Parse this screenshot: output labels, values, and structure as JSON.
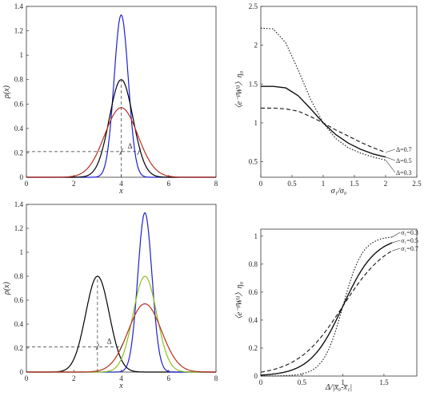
{
  "chart_data": [
    {
      "type": "line",
      "panel": "top-left",
      "xlabel": "x",
      "ylabel": "ρ(x)",
      "xlim": [
        0,
        8
      ],
      "ylim": [
        0,
        1.4
      ],
      "xticks": [
        "0",
        "2",
        "4",
        "6",
        "8"
      ],
      "yticks": [
        "0",
        "0.2",
        "0.4",
        "0.6",
        "0.8",
        "1",
        "1.2",
        "1.4"
      ],
      "series": [
        {
          "color": "#1f1fd1",
          "shape": "gaussian",
          "mean": 4.0,
          "peak": 1.33
        },
        {
          "color": "#000000",
          "shape": "gaussian",
          "mean": 4.0,
          "peak": 0.8
        },
        {
          "color": "#b5301f",
          "shape": "gaussian",
          "mean": 4.0,
          "peak": 0.57
        }
      ],
      "annotation": {
        "text": "Δ",
        "y_level": 0.21,
        "x_marker": 4.0,
        "x_span": [
          4.0,
          4.75
        ]
      }
    },
    {
      "type": "line",
      "panel": "top-right",
      "xlabel": "σ₁/σ₀",
      "ylabel": "〈e⁻ᵝWᵈ〉η₀",
      "xlim": [
        0,
        2.5
      ],
      "ylim": [
        0.3,
        2.5
      ],
      "xticks": [
        "0",
        "0.5",
        "1",
        "1.5",
        "2",
        "2.5"
      ],
      "yticks": [
        "0.5",
        "1",
        "1.5",
        "2",
        "2.5"
      ],
      "series": [
        {
          "name": "Δ=0.7",
          "style": "dashed",
          "x": [
            0,
            0.2,
            0.4,
            0.6,
            0.8,
            1.0,
            1.2,
            1.4,
            1.6,
            1.8,
            2.0
          ],
          "y": [
            1.19,
            1.19,
            1.18,
            1.15,
            1.08,
            1.0,
            0.91,
            0.83,
            0.75,
            0.68,
            0.62
          ]
        },
        {
          "name": "Δ=0.5",
          "style": "solid",
          "x": [
            0,
            0.2,
            0.4,
            0.6,
            0.8,
            1.0,
            1.2,
            1.4,
            1.6,
            1.8,
            2.0
          ],
          "y": [
            1.47,
            1.47,
            1.45,
            1.35,
            1.18,
            1.0,
            0.85,
            0.74,
            0.66,
            0.6,
            0.56
          ]
        },
        {
          "name": "Δ=0.3",
          "style": "dotted",
          "x": [
            0,
            0.2,
            0.4,
            0.6,
            0.8,
            1.0,
            1.2,
            1.4,
            1.6,
            1.8,
            2.0
          ],
          "y": [
            2.22,
            2.21,
            2.03,
            1.68,
            1.3,
            1.0,
            0.8,
            0.68,
            0.61,
            0.56,
            0.52
          ]
        }
      ]
    },
    {
      "type": "line",
      "panel": "bottom-left",
      "xlabel": "x",
      "ylabel": "ρ(x)",
      "xlim": [
        0,
        8
      ],
      "ylim": [
        0,
        1.4
      ],
      "xticks": [
        "0",
        "2",
        "4",
        "6",
        "8"
      ],
      "yticks": [
        "0",
        "0.2",
        "0.4",
        "0.6",
        "0.8",
        "1",
        "1.2",
        "1.4"
      ],
      "series": [
        {
          "color": "#000000",
          "shape": "gaussian",
          "mean": 3.0,
          "peak": 0.8
        },
        {
          "color": "#1f1fd1",
          "shape": "gaussian",
          "mean": 5.0,
          "peak": 1.33
        },
        {
          "color": "#8ec21f",
          "shape": "gaussian",
          "mean": 5.0,
          "peak": 0.8
        },
        {
          "color": "#b5301f",
          "shape": "gaussian",
          "mean": 5.0,
          "peak": 0.57
        }
      ],
      "annotation": {
        "text": "Δ",
        "y_level": 0.21,
        "x_marker": 3.0,
        "x_span": [
          3.0,
          4.0
        ]
      }
    },
    {
      "type": "line",
      "panel": "bottom-right",
      "xlabel": "Δ/|x̅₀-x̅₁|",
      "ylabel": "〈e⁻ᵝWᵈ〉η₀",
      "xlim": [
        0,
        1.9
      ],
      "ylim": [
        0,
        1.05
      ],
      "xticks": [
        "0",
        "0.5",
        "1",
        "1.5"
      ],
      "yticks": [
        "0",
        "0.2",
        "0.4",
        "0.6",
        "0.8",
        "1"
      ],
      "series": [
        {
          "name": "σ₁=0.3",
          "style": "dotted",
          "width": 0.12
        },
        {
          "name": "σ₁=0.5",
          "style": "solid",
          "width": 0.2
        },
        {
          "name": "σ₁=0.7",
          "style": "dashed",
          "width": 0.28
        }
      ]
    }
  ]
}
